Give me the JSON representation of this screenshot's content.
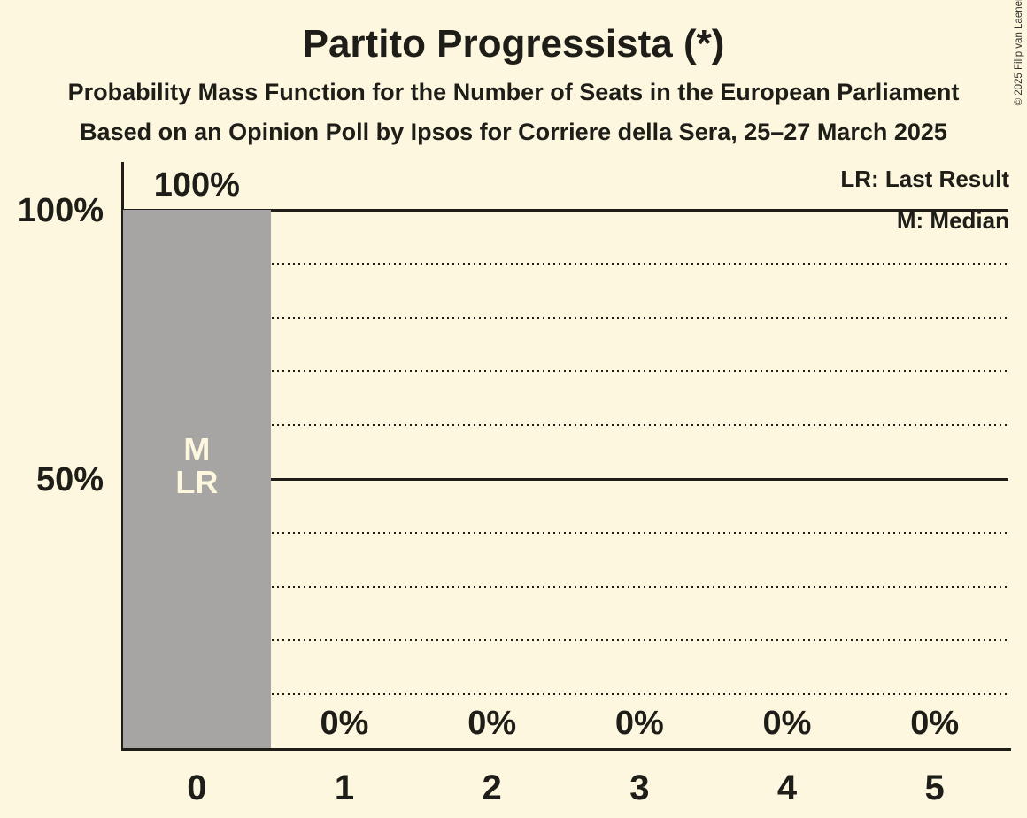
{
  "header": {
    "title": "Partito Progressista (*)",
    "subtitle1": "Probability Mass Function for the Number of Seats in the European Parliament",
    "subtitle2": "Based on an Opinion Poll by Ipsos for Corriere della Sera, 25–27 March 2025"
  },
  "legend": {
    "last_result": "LR: Last Result",
    "median": "M: Median"
  },
  "copyright": "© 2025 Filip van Laenen",
  "colors": {
    "background": "#FCF7DE",
    "bar": "#A6A5A3",
    "text": "#1E1D18",
    "line": "#1E1D18",
    "bar_label_text": "#FCF7DE"
  },
  "chart_data": {
    "type": "bar",
    "title": "Partito Progressista (*)",
    "categories": [
      "0",
      "1",
      "2",
      "3",
      "4",
      "5"
    ],
    "values": [
      100,
      0,
      0,
      0,
      0,
      0
    ],
    "value_labels": [
      "100%",
      "0%",
      "0%",
      "0%",
      "0%",
      "0%"
    ],
    "ylim": [
      0,
      100
    ],
    "y_ticks": [
      {
        "percent": 100,
        "label": "100%"
      },
      {
        "percent": 50,
        "label": "50%"
      }
    ],
    "gridlines": [
      {
        "percent": 100,
        "style": "solid"
      },
      {
        "percent": 90,
        "style": "dotted"
      },
      {
        "percent": 80,
        "style": "dotted"
      },
      {
        "percent": 70,
        "style": "dotted"
      },
      {
        "percent": 60,
        "style": "dotted"
      },
      {
        "percent": 50,
        "style": "solid"
      },
      {
        "percent": 40,
        "style": "dotted"
      },
      {
        "percent": 30,
        "style": "dotted"
      },
      {
        "percent": 20,
        "style": "dotted"
      },
      {
        "percent": 10,
        "style": "dotted"
      }
    ],
    "bar_annotations": [
      {
        "category_index": 0,
        "lines": [
          "M",
          "LR"
        ]
      }
    ],
    "annotation_legend": {
      "M": "Median",
      "LR": "Last Result"
    },
    "legend_position": "top-right",
    "grid": "horizontal-only"
  }
}
